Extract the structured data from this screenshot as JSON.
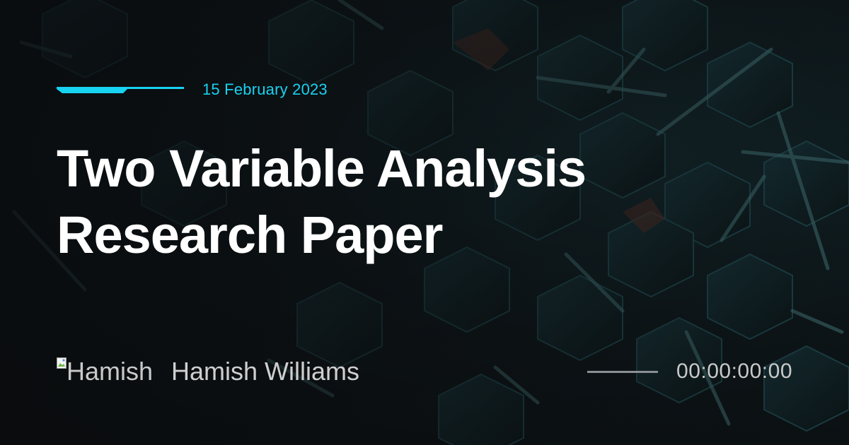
{
  "card": {
    "date": "15 February 2023",
    "title": "Two Variable Analysis Research Paper",
    "author": {
      "avatar_alt": "Hamish",
      "name": "Hamish Williams"
    },
    "timecode": "00:00:00:00",
    "progress": 0
  },
  "colors": {
    "accent": "#18d2f2",
    "title_text": "#ffffff",
    "secondary_text": "#cfcfcf",
    "background": "#0b0f12"
  },
  "icons": {
    "accent_line": "cyan-accent-line-icon",
    "avatar": "broken-image-icon"
  }
}
